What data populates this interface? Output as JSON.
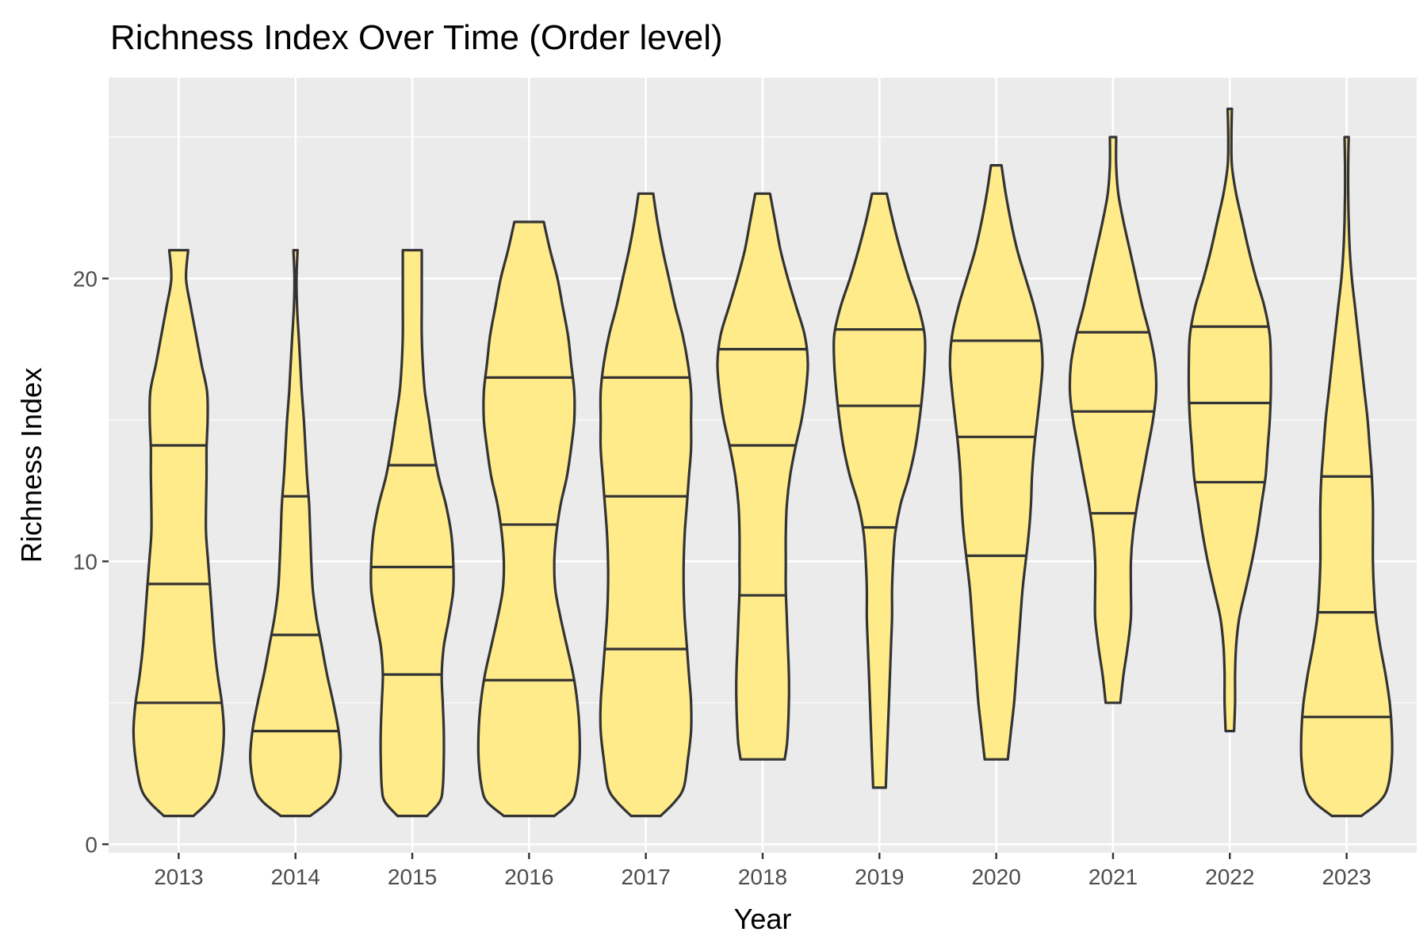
{
  "chart_data": {
    "type": "violin",
    "title": "Richness Index Over Time (Order level)",
    "xlabel": "Year",
    "ylabel": "Richness Index",
    "ylim": [
      -0.3,
      27.1
    ],
    "yticks": [
      0,
      10,
      20
    ],
    "grid": true,
    "colors": {
      "fill": "#FFEB8A",
      "stroke": "#333333",
      "panel": "#EBEBEB",
      "grid": "#FFFFFF"
    },
    "categories": [
      "2013",
      "2014",
      "2015",
      "2016",
      "2017",
      "2018",
      "2019",
      "2020",
      "2021",
      "2022",
      "2023"
    ],
    "violins": [
      {
        "year": "2013",
        "min": 1,
        "max": 21,
        "quantiles": [
          5.0,
          9.2,
          14.1
        ],
        "profile": [
          [
            1,
            0.28
          ],
          [
            1.5,
            0.56
          ],
          [
            2,
            0.72
          ],
          [
            3,
            0.82
          ],
          [
            4,
            0.86
          ],
          [
            5,
            0.82
          ],
          [
            6,
            0.74
          ],
          [
            7,
            0.68
          ],
          [
            8,
            0.64
          ],
          [
            9,
            0.6
          ],
          [
            10,
            0.56
          ],
          [
            11,
            0.52
          ],
          [
            12,
            0.52
          ],
          [
            13,
            0.53
          ],
          [
            14,
            0.53
          ],
          [
            15,
            0.55
          ],
          [
            16,
            0.54
          ],
          [
            17,
            0.43
          ],
          [
            18,
            0.33
          ],
          [
            19,
            0.23
          ],
          [
            20,
            0.14
          ],
          [
            21,
            0.18
          ]
        ]
      },
      {
        "year": "2014",
        "min": 1,
        "max": 21,
        "quantiles": [
          4.0,
          7.4,
          12.3
        ],
        "profile": [
          [
            1,
            0.28
          ],
          [
            1.5,
            0.62
          ],
          [
            2,
            0.78
          ],
          [
            3,
            0.86
          ],
          [
            4,
            0.82
          ],
          [
            5,
            0.72
          ],
          [
            6,
            0.6
          ],
          [
            7,
            0.5
          ],
          [
            8,
            0.4
          ],
          [
            9,
            0.33
          ],
          [
            10,
            0.3
          ],
          [
            11,
            0.28
          ],
          [
            12,
            0.26
          ],
          [
            13,
            0.22
          ],
          [
            14,
            0.19
          ],
          [
            15,
            0.16
          ],
          [
            16,
            0.12
          ],
          [
            17,
            0.09
          ],
          [
            18,
            0.06
          ],
          [
            19,
            0.03
          ],
          [
            20,
            0.02
          ],
          [
            21,
            0.04
          ]
        ]
      },
      {
        "year": "2015",
        "min": 1,
        "max": 21,
        "quantiles": [
          6.0,
          9.8,
          13.4
        ],
        "profile": [
          [
            1,
            0.28
          ],
          [
            1.5,
            0.52
          ],
          [
            2,
            0.58
          ],
          [
            3,
            0.6
          ],
          [
            4,
            0.6
          ],
          [
            5,
            0.58
          ],
          [
            6,
            0.56
          ],
          [
            7,
            0.6
          ],
          [
            8,
            0.7
          ],
          [
            9,
            0.78
          ],
          [
            10,
            0.78
          ],
          [
            11,
            0.74
          ],
          [
            12,
            0.64
          ],
          [
            13,
            0.5
          ],
          [
            14,
            0.4
          ],
          [
            15,
            0.32
          ],
          [
            16,
            0.24
          ],
          [
            17,
            0.2
          ],
          [
            18,
            0.18
          ],
          [
            19,
            0.18
          ],
          [
            20,
            0.18
          ],
          [
            21,
            0.18
          ]
        ]
      },
      {
        "year": "2016",
        "min": 1,
        "max": 22,
        "quantiles": [
          5.8,
          11.3,
          16.5
        ],
        "profile": [
          [
            1,
            0.48
          ],
          [
            1.5,
            0.8
          ],
          [
            2,
            0.9
          ],
          [
            3,
            0.96
          ],
          [
            4,
            0.96
          ],
          [
            5,
            0.92
          ],
          [
            6,
            0.84
          ],
          [
            7,
            0.72
          ],
          [
            8,
            0.6
          ],
          [
            9,
            0.5
          ],
          [
            10,
            0.48
          ],
          [
            11,
            0.52
          ],
          [
            12,
            0.6
          ],
          [
            13,
            0.72
          ],
          [
            14,
            0.8
          ],
          [
            15,
            0.86
          ],
          [
            16,
            0.86
          ],
          [
            17,
            0.8
          ],
          [
            18,
            0.74
          ],
          [
            19,
            0.64
          ],
          [
            20,
            0.54
          ],
          [
            21,
            0.4
          ],
          [
            22,
            0.28
          ]
        ]
      },
      {
        "year": "2017",
        "min": 1,
        "max": 23,
        "quantiles": [
          6.9,
          12.3,
          16.5
        ],
        "profile": [
          [
            1,
            0.28
          ],
          [
            1.5,
            0.55
          ],
          [
            2,
            0.72
          ],
          [
            3,
            0.8
          ],
          [
            4,
            0.86
          ],
          [
            5,
            0.86
          ],
          [
            6,
            0.82
          ],
          [
            7,
            0.78
          ],
          [
            8,
            0.74
          ],
          [
            9,
            0.72
          ],
          [
            10,
            0.72
          ],
          [
            11,
            0.74
          ],
          [
            12,
            0.78
          ],
          [
            13,
            0.82
          ],
          [
            14,
            0.86
          ],
          [
            15,
            0.86
          ],
          [
            16,
            0.86
          ],
          [
            17,
            0.8
          ],
          [
            18,
            0.7
          ],
          [
            19,
            0.56
          ],
          [
            20,
            0.44
          ],
          [
            21,
            0.32
          ],
          [
            22,
            0.22
          ],
          [
            23,
            0.14
          ]
        ]
      },
      {
        "year": "2018",
        "min": 3,
        "max": 23,
        "quantiles": [
          8.8,
          14.1,
          17.5
        ],
        "profile": [
          [
            3,
            0.42
          ],
          [
            3.5,
            0.46
          ],
          [
            4,
            0.48
          ],
          [
            5,
            0.5
          ],
          [
            6,
            0.5
          ],
          [
            7,
            0.48
          ],
          [
            8,
            0.46
          ],
          [
            9,
            0.44
          ],
          [
            10,
            0.44
          ],
          [
            11,
            0.44
          ],
          [
            12,
            0.46
          ],
          [
            13,
            0.52
          ],
          [
            14,
            0.62
          ],
          [
            15,
            0.74
          ],
          [
            16,
            0.82
          ],
          [
            17,
            0.86
          ],
          [
            18,
            0.8
          ],
          [
            19,
            0.64
          ],
          [
            20,
            0.48
          ],
          [
            21,
            0.34
          ],
          [
            22,
            0.24
          ],
          [
            23,
            0.14
          ]
        ]
      },
      {
        "year": "2019",
        "min": 2,
        "max": 23,
        "quantiles": [
          11.2,
          15.5,
          18.2
        ],
        "profile": [
          [
            2,
            0.12
          ],
          [
            3,
            0.14
          ],
          [
            4,
            0.16
          ],
          [
            5,
            0.18
          ],
          [
            6,
            0.2
          ],
          [
            7,
            0.22
          ],
          [
            8,
            0.24
          ],
          [
            9,
            0.24
          ],
          [
            10,
            0.26
          ],
          [
            11,
            0.3
          ],
          [
            12,
            0.4
          ],
          [
            13,
            0.56
          ],
          [
            14,
            0.68
          ],
          [
            15,
            0.76
          ],
          [
            16,
            0.82
          ],
          [
            17,
            0.86
          ],
          [
            18,
            0.86
          ],
          [
            19,
            0.74
          ],
          [
            20,
            0.56
          ],
          [
            21,
            0.4
          ],
          [
            22,
            0.26
          ],
          [
            23,
            0.14
          ]
        ]
      },
      {
        "year": "2020",
        "min": 3,
        "max": 24,
        "quantiles": [
          10.2,
          14.4,
          17.8
        ],
        "profile": [
          [
            3,
            0.22
          ],
          [
            4,
            0.28
          ],
          [
            5,
            0.34
          ],
          [
            6,
            0.38
          ],
          [
            7,
            0.42
          ],
          [
            8,
            0.46
          ],
          [
            9,
            0.5
          ],
          [
            10,
            0.56
          ],
          [
            11,
            0.62
          ],
          [
            12,
            0.66
          ],
          [
            13,
            0.68
          ],
          [
            14,
            0.72
          ],
          [
            15,
            0.78
          ],
          [
            16,
            0.84
          ],
          [
            17,
            0.88
          ],
          [
            18,
            0.84
          ],
          [
            19,
            0.72
          ],
          [
            20,
            0.56
          ],
          [
            21,
            0.4
          ],
          [
            22,
            0.28
          ],
          [
            23,
            0.18
          ],
          [
            24,
            0.1
          ]
        ]
      },
      {
        "year": "2021",
        "min": 5,
        "max": 25,
        "quantiles": [
          11.7,
          15.3,
          18.1
        ],
        "profile": [
          [
            5,
            0.14
          ],
          [
            6,
            0.2
          ],
          [
            7,
            0.28
          ],
          [
            8,
            0.34
          ],
          [
            9,
            0.34
          ],
          [
            10,
            0.34
          ],
          [
            11,
            0.38
          ],
          [
            12,
            0.46
          ],
          [
            13,
            0.56
          ],
          [
            14,
            0.66
          ],
          [
            15,
            0.76
          ],
          [
            16,
            0.82
          ],
          [
            17,
            0.8
          ],
          [
            18,
            0.7
          ],
          [
            19,
            0.56
          ],
          [
            20,
            0.44
          ],
          [
            21,
            0.32
          ],
          [
            22,
            0.2
          ],
          [
            23,
            0.1
          ],
          [
            24,
            0.06
          ],
          [
            25,
            0.06
          ]
        ]
      },
      {
        "year": "2022",
        "min": 4,
        "max": 26,
        "quantiles": [
          12.8,
          15.6,
          18.3
        ],
        "profile": [
          [
            4,
            0.08
          ],
          [
            5,
            0.1
          ],
          [
            6,
            0.1
          ],
          [
            7,
            0.12
          ],
          [
            8,
            0.18
          ],
          [
            9,
            0.3
          ],
          [
            10,
            0.42
          ],
          [
            11,
            0.52
          ],
          [
            12,
            0.6
          ],
          [
            13,
            0.68
          ],
          [
            14,
            0.72
          ],
          [
            15,
            0.76
          ],
          [
            16,
            0.78
          ],
          [
            17,
            0.78
          ],
          [
            18,
            0.76
          ],
          [
            19,
            0.66
          ],
          [
            20,
            0.5
          ],
          [
            21,
            0.36
          ],
          [
            22,
            0.24
          ],
          [
            23,
            0.12
          ],
          [
            24,
            0.04
          ],
          [
            25,
            0.03
          ],
          [
            26,
            0.04
          ]
        ]
      },
      {
        "year": "2023",
        "min": 1,
        "max": 25,
        "quantiles": [
          4.5,
          8.2,
          13.0
        ],
        "profile": [
          [
            1,
            0.28
          ],
          [
            1.5,
            0.62
          ],
          [
            2,
            0.78
          ],
          [
            3,
            0.86
          ],
          [
            4,
            0.86
          ],
          [
            5,
            0.82
          ],
          [
            6,
            0.74
          ],
          [
            7,
            0.64
          ],
          [
            8,
            0.56
          ],
          [
            9,
            0.52
          ],
          [
            10,
            0.5
          ],
          [
            11,
            0.5
          ],
          [
            12,
            0.5
          ],
          [
            13,
            0.48
          ],
          [
            14,
            0.44
          ],
          [
            15,
            0.4
          ],
          [
            16,
            0.34
          ],
          [
            17,
            0.28
          ],
          [
            18,
            0.22
          ],
          [
            19,
            0.16
          ],
          [
            20,
            0.1
          ],
          [
            21,
            0.06
          ],
          [
            22,
            0.04
          ],
          [
            23,
            0.03
          ],
          [
            24,
            0.03
          ],
          [
            25,
            0.04
          ]
        ]
      }
    ]
  }
}
